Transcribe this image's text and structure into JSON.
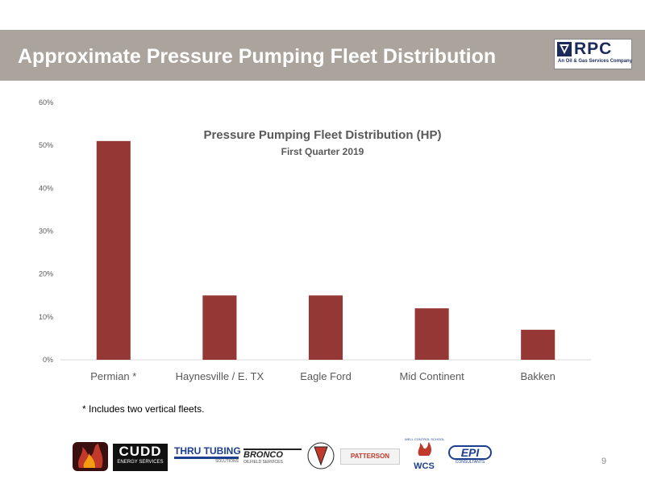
{
  "header": {
    "title": "Approximate Pressure Pumping Fleet Distribution",
    "logo_text": "RPC",
    "logo_tagline": "An Oil & Gas Services Company"
  },
  "chart_data": {
    "type": "bar",
    "title": "Pressure Pumping Fleet Distribution (HP)",
    "subtitle": "First Quarter 2019",
    "categories": [
      "Permian *",
      "Haynesville / E. TX",
      "Eagle Ford",
      "Mid Continent",
      "Bakken"
    ],
    "values": [
      51,
      15,
      15,
      12,
      7
    ],
    "ylim": [
      0,
      60
    ],
    "yticks": [
      "0%",
      "10%",
      "20%",
      "30%",
      "40%",
      "50%",
      "60%"
    ],
    "xlabel": "",
    "ylabel": "",
    "grid": false,
    "bar_color": "#953735"
  },
  "footnote": "* Includes two vertical fleets.",
  "page_number": "9",
  "footer_logos": [
    {
      "name": "cudo-flame",
      "text": ""
    },
    {
      "name": "cudd",
      "text": "CUDD",
      "sub": "ENERGY SERVICES"
    },
    {
      "name": "thru-tubing",
      "text": "THRU TUBING",
      "sub": "SOLUTIONS"
    },
    {
      "name": "bronco",
      "text": "BRONCO",
      "sub": "OILFIELD SERVICES"
    },
    {
      "name": "patterson-services",
      "text": "PATTERSON",
      "sub": "SERVICES"
    },
    {
      "name": "patterson-truck",
      "text": "PATTERSON"
    },
    {
      "name": "wcs",
      "text": "WCS",
      "sub": "WELL CONTROL SCHOOL"
    },
    {
      "name": "epi",
      "text": "EPI",
      "sub": "CONSULTANTS"
    }
  ],
  "colors": {
    "banner": "#aba49c",
    "bar": "#953735",
    "axis_text": "#595959"
  }
}
